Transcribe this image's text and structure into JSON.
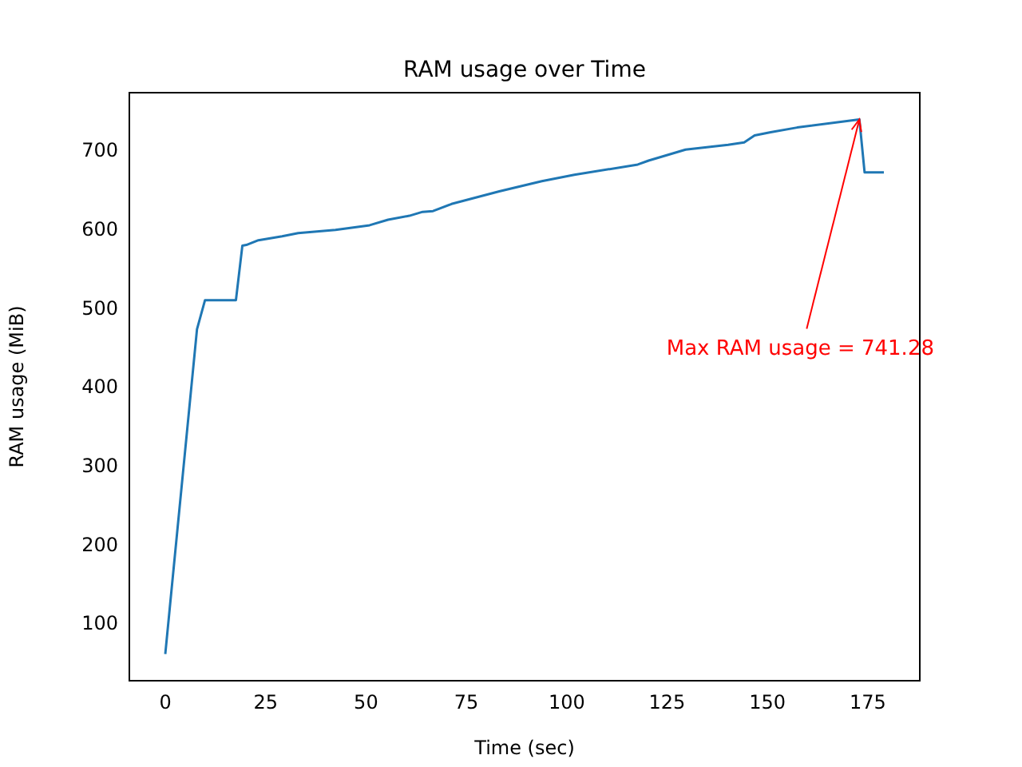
{
  "chart_data": {
    "type": "line",
    "title": "RAM usage over Time",
    "xlabel": "Time (sec)",
    "ylabel": "RAM usage (MiB)",
    "x": [
      0,
      7.9,
      9.9,
      17.6,
      19.2,
      20.2,
      23.2,
      29.1,
      33.1,
      42.4,
      50.9,
      55.5,
      60.8,
      64.1,
      66.7,
      71.3,
      83.2,
      93.8,
      101.9,
      117.7,
      120.4,
      129.6,
      140.2,
      144.2,
      146.8,
      150.8,
      157.4,
      172.9,
      174.2,
      179
    ],
    "series": [
      {
        "color": "#1f77b4",
        "values": [
          63,
          475,
          512,
          512,
          581,
          582,
          588,
          593,
          597,
          601,
          607,
          614,
          619,
          624,
          625,
          634,
          650,
          663,
          671,
          684,
          689,
          703,
          709,
          712,
          721,
          725,
          731,
          741.28,
          674,
          674
        ]
      }
    ],
    "xlim": [
      -8.95,
      187.95
    ],
    "ylim": [
      29.1,
      775.2
    ],
    "xticks": [
      0,
      25,
      50,
      75,
      100,
      125,
      150,
      175
    ],
    "yticks": [
      100,
      200,
      300,
      400,
      500,
      600,
      700
    ],
    "grid": false,
    "legend": false,
    "marker": "none",
    "line_style": "solid",
    "annotations": [
      {
        "text": "Max RAM usage = 741.28",
        "x": 172.9,
        "y": 741.28
      }
    ]
  }
}
